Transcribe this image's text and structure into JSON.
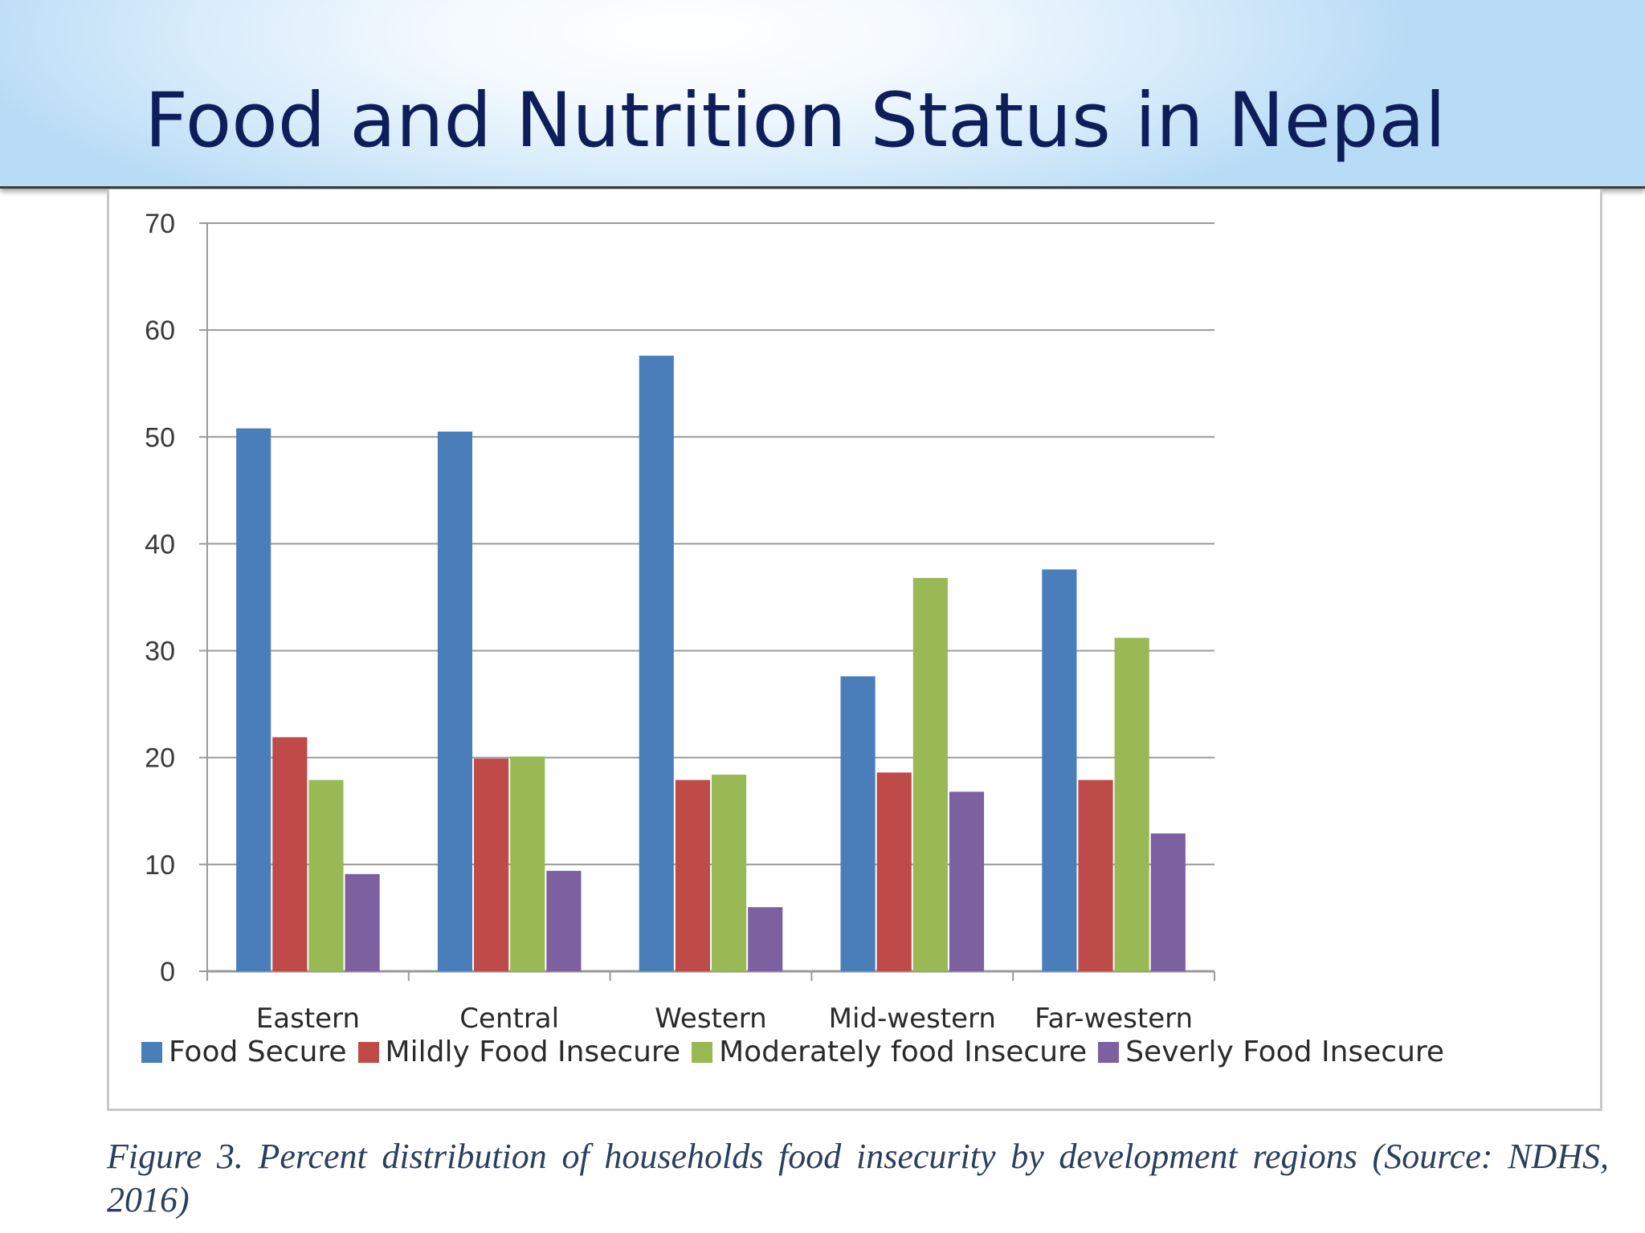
{
  "slide": {
    "title": "Food and Nutrition Status in Nepal",
    "caption": "Figure 3. Percent distribution of households food insecurity by development regions (Source: NDHS, 2016)"
  },
  "chart_data": {
    "type": "bar",
    "title": "",
    "xlabel": "",
    "ylabel": "",
    "ylim": [
      0,
      70
    ],
    "yticks": [
      0,
      10,
      20,
      30,
      40,
      50,
      60,
      70
    ],
    "grid": true,
    "legend_position": "bottom",
    "categories": [
      "Eastern",
      "Central",
      "Western",
      "Mid-western",
      "Far-western"
    ],
    "series": [
      {
        "name": "Food Secure",
        "color": "#4a7ebb",
        "values": [
          50.8,
          50.5,
          57.6,
          27.6,
          37.6
        ]
      },
      {
        "name": "Mildly Food Insecure",
        "color": "#be4b48",
        "values": [
          21.9,
          19.9,
          17.9,
          18.6,
          17.9
        ]
      },
      {
        "name": "Moderately food Insecure",
        "color": "#98b954",
        "values": [
          17.9,
          20.1,
          18.4,
          36.8,
          31.2
        ]
      },
      {
        "name": "Severly Food Insecure",
        "color": "#7d60a0",
        "values": [
          9.1,
          9.4,
          6.0,
          16.8,
          12.9
        ]
      }
    ]
  }
}
